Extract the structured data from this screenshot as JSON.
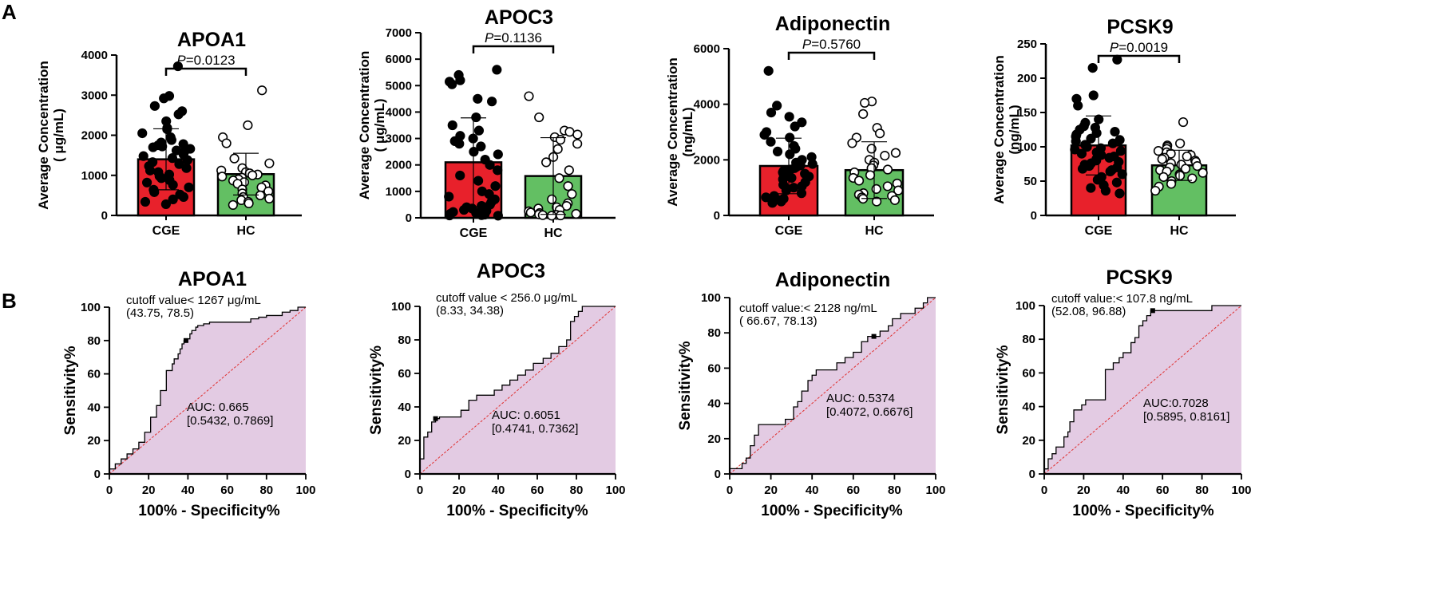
{
  "panel_labels": [
    "A",
    "B"
  ],
  "colors": {
    "cge_bar": "#e8212b",
    "hc_bar": "#63bf63",
    "roc_fill": "#e3cbe3",
    "roc_line": "#000000",
    "diagonal": "#e03030"
  },
  "chart_data": [
    {
      "type": "bar",
      "title": "APOA1",
      "ylabel_line1": "Average Concentration",
      "ylabel_line2": "( μg/mL)",
      "categories": [
        "CGE",
        "HC"
      ],
      "values": [
        1400,
        1030
      ],
      "sd": [
        760,
        520
      ],
      "ylim": [
        0,
        4000
      ],
      "yticks": [
        0,
        1000,
        2000,
        3000,
        4000
      ],
      "p_value": "=0.0123",
      "points": [
        [
          3720,
          2980,
          2920,
          2730,
          2600,
          2520,
          2350,
          2180,
          2150,
          2050,
          1950,
          1880,
          1820,
          1780,
          1750,
          1720,
          1700,
          1660,
          1620,
          1580,
          1520,
          1480,
          1430,
          1380,
          1330,
          1280,
          1230,
          1180,
          1120,
          1080,
          1020,
          980,
          930,
          880,
          820,
          760,
          700,
          640,
          580,
          520,
          460,
          400,
          340,
          280
        ],
        [
          3120,
          2250,
          1950,
          1800,
          1420,
          1300,
          1180,
          1120,
          1080,
          1050,
          1020,
          1000,
          970,
          940,
          900,
          870,
          830,
          790,
          750,
          700,
          650,
          600,
          550,
          500,
          460,
          420,
          380,
          340,
          300,
          260
        ]
      ]
    },
    {
      "type": "bar",
      "title": "APOC3",
      "ylabel_line1": "Average Concentration",
      "ylabel_line2": "( μg/mL)",
      "categories": [
        "CGE",
        "HC"
      ],
      "values": [
        2100,
        1580
      ],
      "sd": [
        1680,
        1450
      ],
      "ylim": [
        0,
        7000
      ],
      "yticks": [
        0,
        1000,
        2000,
        3000,
        4000,
        5000,
        6000,
        7000
      ],
      "p_value": "=0.1136",
      "points": [
        [
          5600,
          5400,
          5200,
          5150,
          5050,
          4500,
          4400,
          3800,
          3500,
          3300,
          3100,
          3000,
          2900,
          2800,
          2700,
          2500,
          2400,
          2200,
          2000,
          1800,
          1600,
          1400,
          1200,
          1000,
          900,
          800,
          700,
          600,
          500,
          450,
          400,
          350,
          300,
          260,
          220,
          180,
          150,
          120,
          100,
          90,
          80
        ],
        [
          4600,
          3800,
          3300,
          3250,
          3150,
          3050,
          2950,
          2800,
          2600,
          2300,
          2100,
          1800,
          1500,
          1200,
          900,
          700,
          550,
          450,
          400,
          350,
          300,
          250,
          200,
          180,
          150,
          130,
          110,
          100,
          90,
          80
        ]
      ]
    },
    {
      "type": "bar",
      "title": "Adiponectin",
      "ylabel_line1": "Average Concentration",
      "ylabel_line2": "(ng/mL)",
      "categories": [
        "CGE",
        "HC"
      ],
      "values": [
        1780,
        1630
      ],
      "sd": [
        1000,
        1020
      ],
      "ylim": [
        0,
        6000
      ],
      "yticks": [
        0,
        2000,
        4000,
        6000
      ],
      "p_value": "=0.5760",
      "points": [
        [
          5200,
          3950,
          3700,
          3550,
          3350,
          3200,
          3000,
          2900,
          2800,
          2650,
          2500,
          2400,
          2300,
          2200,
          2100,
          2000,
          1900,
          1850,
          1800,
          1750,
          1700,
          1650,
          1600,
          1550,
          1500,
          1450,
          1400,
          1350,
          1300,
          1200,
          1100,
          1050,
          1000,
          950,
          900,
          800,
          700,
          650,
          600,
          550,
          500,
          450
        ],
        [
          4100,
          4050,
          3650,
          3150,
          2950,
          2800,
          2600,
          2400,
          2250,
          2150,
          2000,
          1900,
          1800,
          1700,
          1650,
          1550,
          1450,
          1350,
          1250,
          1150,
          1050,
          950,
          900,
          800,
          750,
          700,
          650,
          600,
          550,
          500
        ]
      ]
    },
    {
      "type": "bar",
      "title": "PCSK9",
      "ylabel_line1": "Average Concentration",
      "ylabel_line2": "(ng/mL)",
      "categories": [
        "CGE",
        "HC"
      ],
      "values": [
        102,
        73
      ],
      "sd": [
        43,
        22
      ],
      "ylim": [
        0,
        250
      ],
      "yticks": [
        0,
        50,
        100,
        150,
        200,
        250
      ],
      "p_value": "=0.0019",
      "points": [
        [
          227,
          215,
          175,
          170,
          160,
          140,
          135,
          130,
          128,
          125,
          122,
          120,
          118,
          115,
          112,
          110,
          108,
          105,
          103,
          100,
          98,
          96,
          94,
          92,
          90,
          88,
          86,
          84,
          82,
          80,
          78,
          76,
          74,
          72,
          70,
          68,
          66,
          64,
          60,
          56,
          52,
          48,
          44,
          40,
          36,
          32
        ],
        [
          136,
          105,
          102,
          100,
          97,
          94,
          92,
          90,
          88,
          86,
          84,
          82,
          80,
          78,
          76,
          74,
          72,
          70,
          68,
          66,
          64,
          62,
          60,
          58,
          56,
          54,
          50,
          46,
          42,
          36
        ]
      ]
    },
    {
      "type": "line",
      "subtype": "roc",
      "title": "APOA1",
      "xlabel": "100% - Specificity%",
      "ylabel": "Sensitivity%",
      "xlim": [
        0,
        100
      ],
      "ylim": [
        0,
        100
      ],
      "ticks": [
        0,
        20,
        40,
        60,
        80,
        100
      ],
      "cutoff_line1": "cutoff value< 1267 μg/mL",
      "cutoff_line2": "(43.75, 78.5)",
      "auc_line1": "AUC: 0.665",
      "auc_line2": "[0.5432, 0.7869]",
      "cutoff_point": [
        39,
        80
      ],
      "x": [
        0,
        0,
        3,
        3,
        6,
        6,
        9,
        9,
        12,
        12,
        15,
        15,
        18,
        18,
        21,
        21,
        24,
        24,
        26,
        26,
        29,
        29,
        32,
        32,
        33,
        33,
        35,
        35,
        36,
        36,
        37,
        37,
        38,
        38,
        39,
        39,
        41,
        41,
        42,
        42,
        44,
        44,
        45,
        45,
        48,
        48,
        51,
        51,
        52,
        52,
        56,
        56,
        60,
        60,
        65,
        65,
        72,
        72,
        76,
        76,
        80,
        80,
        84,
        84,
        88,
        88,
        92,
        92,
        96,
        96,
        100
      ],
      "y": [
        0,
        3,
        3,
        6,
        6,
        9,
        9,
        12,
        12,
        15,
        15,
        19,
        19,
        25,
        25,
        34,
        34,
        41,
        41,
        50,
        50,
        62,
        62,
        66,
        66,
        69,
        69,
        72,
        72,
        75,
        75,
        78,
        78,
        80,
        80,
        81,
        81,
        84,
        84,
        86,
        86,
        88,
        88,
        89,
        89,
        90,
        90,
        91,
        91,
        91,
        91,
        91,
        91,
        91,
        91,
        91,
        91,
        93,
        93,
        94,
        94,
        95,
        95,
        95,
        95,
        97,
        97,
        98,
        98,
        100,
        100
      ]
    },
    {
      "type": "line",
      "subtype": "roc",
      "title": "APOC3",
      "xlabel": "100% - Specificity%",
      "ylabel": "Sensitivity%",
      "xlim": [
        0,
        100
      ],
      "ylim": [
        0,
        100
      ],
      "ticks": [
        0,
        20,
        40,
        60,
        80,
        100
      ],
      "cutoff_line1": "cutoff value < 256.0 μg/mL",
      "cutoff_line2": "(8.33, 34.38)",
      "auc_line1": "AUC: 0.6051",
      "auc_line2": "[0.4741, 0.7362]",
      "cutoff_point": [
        8,
        33
      ],
      "x": [
        0,
        0,
        2,
        2,
        4,
        4,
        6,
        6,
        8,
        8,
        10,
        10,
        21,
        21,
        25,
        25,
        29,
        29,
        38,
        38,
        42,
        42,
        46,
        46,
        50,
        50,
        54,
        54,
        58,
        58,
        63,
        63,
        67,
        67,
        71,
        71,
        75,
        75,
        77,
        77,
        79,
        79,
        81,
        81,
        83,
        83,
        88,
        88,
        92,
        92,
        100
      ],
      "y": [
        0,
        9,
        9,
        22,
        22,
        25,
        25,
        31,
        31,
        33,
        33,
        34,
        34,
        38,
        38,
        44,
        44,
        47,
        47,
        50,
        50,
        53,
        53,
        56,
        56,
        59,
        59,
        62,
        62,
        66,
        66,
        69,
        69,
        72,
        72,
        76,
        76,
        80,
        80,
        91,
        91,
        94,
        94,
        97,
        97,
        100,
        100,
        100,
        100,
        100,
        100
      ]
    },
    {
      "type": "line",
      "subtype": "roc",
      "title": "Adiponectin",
      "xlabel": "100% - Specificity%",
      "ylabel": "Sensitivity%",
      "xlim": [
        0,
        100
      ],
      "ylim": [
        0,
        100
      ],
      "ticks": [
        0,
        20,
        40,
        60,
        80,
        100
      ],
      "cutoff_line1": "cutoff value:< 2128 ng/mL",
      "cutoff_line2": "( 66.67, 78.13)",
      "auc_line1": "AUC: 0.5374",
      "auc_line2": "[0.4072, 0.6676]",
      "cutoff_point": [
        70,
        78
      ],
      "x": [
        0,
        0,
        6,
        6,
        8,
        8,
        10,
        10,
        12,
        12,
        14,
        14,
        21,
        21,
        27,
        27,
        31,
        31,
        33,
        33,
        35,
        35,
        38,
        38,
        40,
        40,
        42,
        42,
        46,
        46,
        52,
        52,
        56,
        56,
        60,
        60,
        64,
        64,
        67,
        67,
        71,
        71,
        73,
        73,
        77,
        77,
        79,
        79,
        83,
        83,
        88,
        88,
        90,
        90,
        94,
        94,
        96,
        96,
        98,
        98,
        100
      ],
      "y": [
        0,
        3,
        3,
        6,
        6,
        9,
        9,
        16,
        16,
        22,
        22,
        28,
        28,
        28,
        28,
        31,
        31,
        38,
        38,
        41,
        41,
        47,
        47,
        53,
        53,
        56,
        56,
        59,
        59,
        59,
        59,
        63,
        63,
        66,
        66,
        69,
        69,
        75,
        75,
        78,
        78,
        78,
        78,
        81,
        81,
        84,
        84,
        88,
        88,
        91,
        91,
        91,
        91,
        94,
        94,
        97,
        97,
        100,
        100,
        100,
        100
      ]
    },
    {
      "type": "line",
      "subtype": "roc",
      "title": "PCSK9",
      "xlabel": "100% - Specificity%",
      "ylabel": "Sensitivity%",
      "xlim": [
        0,
        100
      ],
      "ylim": [
        0,
        100
      ],
      "ticks": [
        0,
        20,
        40,
        60,
        80,
        100
      ],
      "cutoff_line1": "cutoff value:< 107.8 ng/mL",
      "cutoff_line2": "(52.08, 96.88)",
      "auc_line1": "AUC:0.7028",
      "auc_line2": "[0.5895, 0.8161]",
      "cutoff_point": [
        55,
        97
      ],
      "x": [
        0,
        0,
        2,
        2,
        4,
        4,
        6,
        6,
        10,
        10,
        12,
        12,
        13,
        13,
        15,
        15,
        19,
        19,
        21,
        21,
        25,
        25,
        31,
        31,
        35,
        35,
        38,
        38,
        40,
        40,
        44,
        44,
        46,
        46,
        48,
        48,
        50,
        50,
        52,
        52,
        54,
        54,
        56,
        56,
        60,
        60,
        69,
        69,
        85,
        85,
        100
      ],
      "y": [
        0,
        3,
        3,
        9,
        9,
        12,
        12,
        16,
        16,
        22,
        22,
        25,
        25,
        31,
        31,
        38,
        38,
        41,
        41,
        44,
        44,
        44,
        44,
        62,
        62,
        66,
        66,
        69,
        69,
        72,
        72,
        78,
        78,
        81,
        81,
        88,
        88,
        91,
        91,
        94,
        94,
        97,
        97,
        97,
        97,
        97,
        97,
        97,
        97,
        100,
        100
      ]
    }
  ]
}
